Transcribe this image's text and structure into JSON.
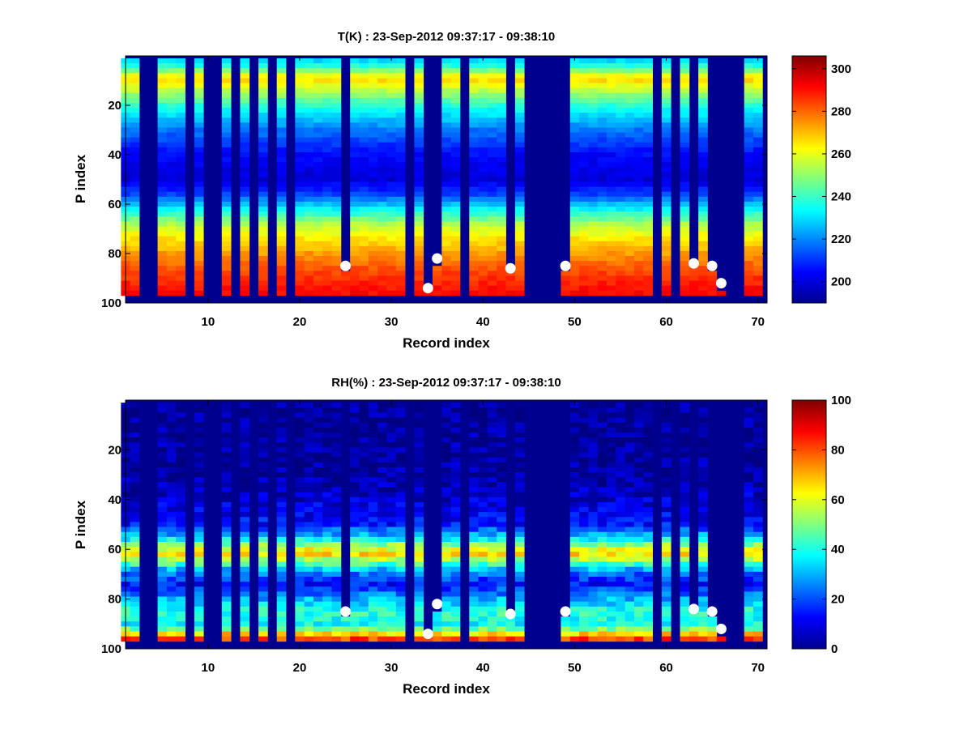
{
  "chart_data": [
    {
      "type": "heatmap",
      "title": "T(K) : 23-Sep-2012 09:37:17 - 09:38:10",
      "xlabel": "Record index",
      "ylabel": "P index",
      "xlim": [
        1,
        71
      ],
      "ylim": [
        0,
        100
      ],
      "y_reversed": true,
      "xticks": [
        10,
        20,
        30,
        40,
        50,
        60,
        70
      ],
      "yticks": [
        20,
        40,
        60,
        80,
        100
      ],
      "colorbar": {
        "min": 190,
        "max": 306,
        "ticks": [
          200,
          220,
          240,
          260,
          280,
          300
        ],
        "colormap": "jet"
      },
      "missing_records": [
        3,
        4,
        8,
        10,
        11,
        13,
        15,
        17,
        19,
        25,
        32,
        34,
        35,
        38,
        43,
        45,
        46,
        47,
        48,
        49,
        59,
        61,
        63,
        65,
        66,
        67,
        68
      ],
      "partial_records": [
        {
          "record": 25,
          "top": 86
        },
        {
          "record": 34,
          "top": 95
        },
        {
          "record": 35,
          "top": 85
        },
        {
          "record": 43,
          "top": 86
        },
        {
          "record": 49,
          "top": 86
        },
        {
          "record": 63,
          "top": 85
        },
        {
          "record": 65,
          "top": 86
        },
        {
          "record": 66,
          "top": 94
        }
      ],
      "markers": [
        {
          "x": 25,
          "y": 85
        },
        {
          "x": 34,
          "y": 94
        },
        {
          "x": 35,
          "y": 82
        },
        {
          "x": 43,
          "y": 86
        },
        {
          "x": 49,
          "y": 85
        },
        {
          "x": 63,
          "y": 84
        },
        {
          "x": 65,
          "y": 85
        },
        {
          "x": 66,
          "y": 92
        }
      ],
      "profile": {
        "p_index": [
          0,
          3,
          6,
          9,
          13,
          20,
          30,
          40,
          50,
          56,
          62,
          68,
          74,
          80,
          86,
          92,
          97
        ],
        "value": [
          225,
          232,
          248,
          268,
          258,
          238,
          218,
          205,
          200,
          212,
          233,
          253,
          265,
          274,
          282,
          288,
          292
        ]
      },
      "valid_p_range": [
        1,
        97
      ]
    },
    {
      "type": "heatmap",
      "title": "RH(%) : 23-Sep-2012 09:37:17 - 09:38:10",
      "xlabel": "Record index",
      "ylabel": "P index",
      "xlim": [
        1,
        71
      ],
      "ylim": [
        0,
        100
      ],
      "y_reversed": true,
      "xticks": [
        10,
        20,
        30,
        40,
        50,
        60,
        70
      ],
      "yticks": [
        20,
        40,
        60,
        80,
        100
      ],
      "colorbar": {
        "min": 0,
        "max": 100,
        "ticks": [
          0,
          20,
          40,
          60,
          80,
          100
        ],
        "colormap": "jet"
      },
      "missing_records": [
        3,
        4,
        8,
        10,
        11,
        13,
        15,
        17,
        19,
        25,
        32,
        34,
        35,
        38,
        43,
        45,
        46,
        47,
        48,
        49,
        59,
        61,
        63,
        65,
        66,
        67,
        68
      ],
      "partial_records": [
        {
          "record": 25,
          "top": 86
        },
        {
          "record": 34,
          "top": 95
        },
        {
          "record": 35,
          "top": 85
        },
        {
          "record": 43,
          "top": 86
        },
        {
          "record": 49,
          "top": 86
        },
        {
          "record": 63,
          "top": 85
        },
        {
          "record": 65,
          "top": 86
        },
        {
          "record": 66,
          "top": 94
        }
      ],
      "markers": [
        {
          "x": 25,
          "y": 85
        },
        {
          "x": 34,
          "y": 94
        },
        {
          "x": 35,
          "y": 82
        },
        {
          "x": 43,
          "y": 86
        },
        {
          "x": 49,
          "y": 85
        },
        {
          "x": 63,
          "y": 84
        },
        {
          "x": 65,
          "y": 85
        },
        {
          "x": 66,
          "y": 92
        }
      ],
      "profile": {
        "p_index": [
          0,
          30,
          40,
          50,
          55,
          59,
          62,
          65,
          69,
          74,
          80,
          85,
          90,
          93,
          95,
          97
        ],
        "value": [
          2,
          3,
          8,
          14,
          32,
          58,
          65,
          50,
          25,
          14,
          30,
          42,
          38,
          55,
          78,
          85
        ]
      },
      "valid_p_range": [
        1,
        97
      ]
    }
  ]
}
